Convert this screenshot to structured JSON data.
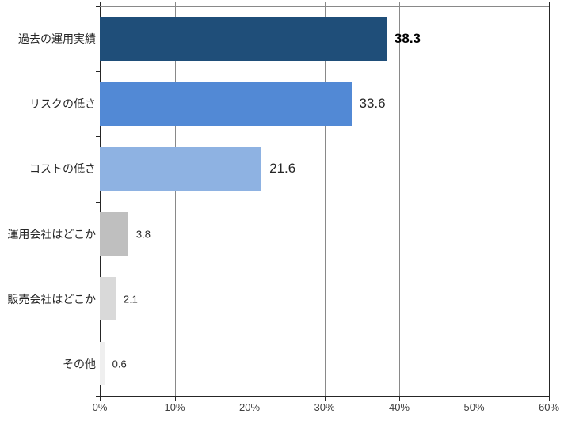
{
  "chart_data": {
    "type": "bar",
    "orientation": "horizontal",
    "title": "",
    "categories": [
      "過去の運用実績",
      "リスクの低さ",
      "コストの低さ",
      "運用会社はどこか",
      "販売会社はどこか",
      "その他"
    ],
    "values": [
      38.3,
      33.6,
      21.6,
      3.8,
      2.1,
      0.6
    ],
    "value_labels": [
      "38.3",
      "33.6",
      "21.6",
      "3.8",
      "2.1",
      "0.6"
    ],
    "emphasized_value_index": 0,
    "large_value_label_count": 3,
    "bar_colors": [
      "#1F4E79",
      "#5289D5",
      "#8EB2E2",
      "#BFBFBF",
      "#D9D9D9",
      "#EFEFEF"
    ],
    "xlim": [
      0,
      60
    ],
    "x_tick_values": [
      0,
      10,
      20,
      30,
      40,
      50,
      60
    ],
    "x_tick_labels": [
      "0%",
      "10%",
      "20%",
      "30%",
      "40%",
      "50%",
      "60%"
    ],
    "grid": true,
    "legend_position": "none",
    "colors": {
      "gridline": "#898989",
      "axis": "#262626",
      "value_text": "#262626",
      "tick_text": "#404040"
    }
  }
}
